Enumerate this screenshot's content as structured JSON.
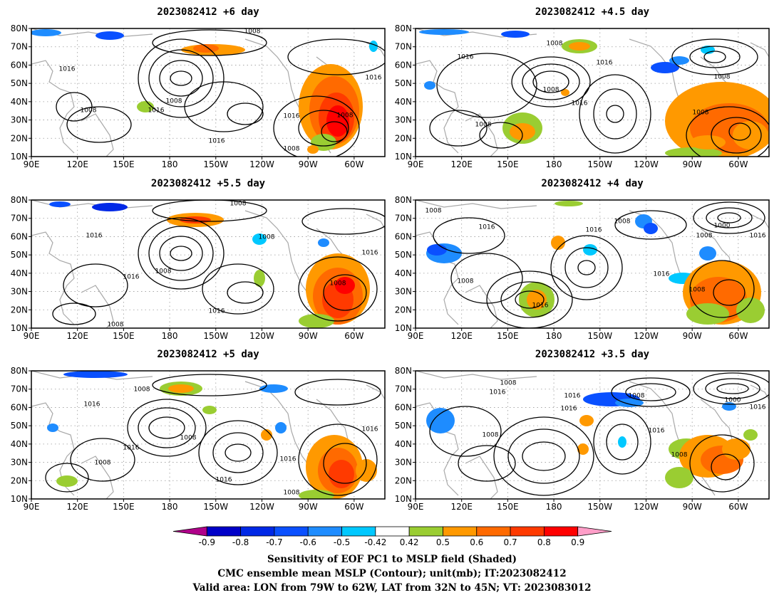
{
  "panels": [
    {
      "title": "2023082412 +6 day"
    },
    {
      "title": "2023082412 +4.5 day"
    },
    {
      "title": "2023082412 +5.5 day"
    },
    {
      "title": "2023082412 +4 day"
    },
    {
      "title": "2023082412 +5 day"
    },
    {
      "title": "2023082412 +3.5 day"
    }
  ],
  "axes": {
    "lat_labels": [
      "80N",
      "70N",
      "60N",
      "50N",
      "40N",
      "30N",
      "20N",
      "10N"
    ],
    "lon_labels": [
      "90E",
      "120E",
      "150E",
      "180",
      "150W",
      "120W",
      "90W",
      "60W"
    ],
    "lon_values": [
      90,
      120,
      150,
      180,
      210,
      240,
      270,
      300
    ],
    "lon_range": [
      90,
      320
    ],
    "lat_range": [
      10,
      80
    ]
  },
  "contour_labels": [
    "1000",
    "1008",
    "1016"
  ],
  "colorbar": {
    "colors": [
      "#b0008a",
      "#0000c8",
      "#0028e6",
      "#0a50ff",
      "#1e8cff",
      "#00c8ff",
      "#ffffff",
      "#9acd32",
      "#ff9900",
      "#ff6a00",
      "#ff3a00",
      "#ff0000",
      "#ff9ec8"
    ],
    "tick_labels": [
      "-0.9",
      "-0.8",
      "-0.7",
      "-0.6",
      "-0.5",
      "-0.42",
      "0.42",
      "0.5",
      "0.6",
      "0.7",
      "0.8",
      "0.9"
    ]
  },
  "caption": {
    "line1": "Sensitivity of EOF PC1 to MSLP field (Shaded)",
    "line2": "CMC ensemble mean MSLP (Contour); unit(mb); IT:2023082412",
    "line3": "Valid area: LON from 79W to 62W, LAT from 32N to 45N; VT: 2023083012"
  }
}
